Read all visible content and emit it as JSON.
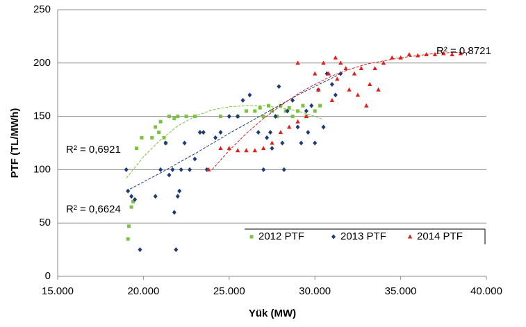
{
  "chart_data": {
    "type": "scatter",
    "xlabel": "Yük (MW)",
    "ylabel": "PTF (TL/MWh)",
    "xlim": [
      15000,
      40000
    ],
    "xticks": [
      {
        "value": 15000,
        "label": "15.000"
      },
      {
        "value": 20000,
        "label": "20.000"
      },
      {
        "value": 25000,
        "label": "25.000"
      },
      {
        "value": 30000,
        "label": "30.000"
      },
      {
        "value": 35000,
        "label": "35.000"
      },
      {
        "value": 40000,
        "label": "40.000"
      }
    ],
    "ylim": [
      0,
      250
    ],
    "yticks": [
      0,
      50,
      100,
      150,
      200,
      250
    ],
    "grid": true,
    "legend": "lower right",
    "series": [
      {
        "name": "2012 PTF",
        "color": "#7cc242",
        "marker": "square",
        "x": [
          19100,
          19150,
          19300,
          19400,
          19600,
          19900,
          20500,
          20700,
          20900,
          21000,
          21200,
          21500,
          21800,
          22000,
          22500,
          23000,
          25500,
          26000,
          26500,
          27000,
          27300,
          27500,
          27800,
          28000,
          28300,
          28700,
          29000,
          29300,
          29500,
          30000,
          30300,
          26800,
          28500,
          24500,
          21300
        ],
        "values": [
          35,
          47,
          65,
          70,
          120,
          130,
          130,
          140,
          135,
          145,
          130,
          150,
          148,
          150,
          150,
          150,
          150,
          155,
          155,
          150,
          160,
          155,
          150,
          160,
          155,
          150,
          155,
          160,
          150,
          155,
          160,
          158,
          158,
          150,
          125
        ]
      },
      {
        "name": "2013 PTF",
        "color": "#1f3a7a",
        "marker": "diamond",
        "x": [
          19000,
          19100,
          19300,
          19500,
          19800,
          20700,
          21000,
          21300,
          21500,
          21700,
          21800,
          21900,
          22000,
          22100,
          22200,
          22400,
          22700,
          23000,
          23300,
          23500,
          23700,
          24200,
          24500,
          25000,
          25500,
          25800,
          26200,
          26700,
          27000,
          27200,
          27500,
          27700,
          27900,
          28100,
          28400,
          28700,
          29000,
          29200,
          29500,
          29800,
          30000,
          30200,
          30500,
          30700,
          31000,
          31200,
          31500,
          28200,
          27400,
          29600
        ],
        "values": [
          100,
          80,
          75,
          72,
          25,
          75,
          100,
          125,
          95,
          100,
          60,
          25,
          75,
          80,
          100,
          125,
          100,
          110,
          135,
          135,
          100,
          130,
          135,
          150,
          150,
          165,
          170,
          135,
          100,
          130,
          120,
          150,
          178,
          125,
          155,
          165,
          140,
          125,
          155,
          160,
          125,
          175,
          140,
          190,
          180,
          170,
          190,
          100,
          135,
          135
        ]
      },
      {
        "name": "2014 PTF",
        "color": "#e0201b",
        "marker": "triangle",
        "x": [
          23800,
          24500,
          25000,
          25500,
          26000,
          26500,
          27000,
          27500,
          28000,
          28500,
          29000,
          29500,
          30000,
          30200,
          30500,
          30800,
          31000,
          31300,
          31500,
          31800,
          32000,
          32300,
          32500,
          32700,
          33000,
          33200,
          33500,
          33700,
          34000,
          34500,
          35000,
          35500,
          36000,
          36500,
          37000,
          37500,
          38000,
          38500,
          29000,
          31200
        ],
        "values": [
          100,
          120,
          120,
          118,
          118,
          118,
          120,
          125,
          135,
          140,
          145,
          150,
          190,
          175,
          200,
          190,
          165,
          185,
          200,
          195,
          175,
          190,
          170,
          195,
          160,
          180,
          195,
          175,
          200,
          205,
          205,
          208,
          207,
          208,
          208,
          209,
          208,
          209,
          200,
          205
        ]
      }
    ],
    "trendlines": [
      {
        "color": "#7cc242",
        "x": [
          19000,
          20000,
          21000,
          22000,
          23000,
          24000,
          25000,
          26000,
          27000,
          28000,
          29000,
          30000,
          30500
        ],
        "values": [
          92,
          112,
          128,
          141,
          150,
          156,
          159,
          160,
          160,
          158,
          155,
          150,
          147
        ]
      },
      {
        "color": "#1f3a7a",
        "x": [
          19000,
          21000,
          23000,
          25000,
          27000,
          29000,
          31000,
          31500
        ],
        "values": [
          80,
          97,
          115,
          134,
          152,
          170,
          186,
          190
        ]
      },
      {
        "color": "#e0201b",
        "x": [
          24000,
          25000,
          26000,
          27000,
          28000,
          29000,
          30000,
          31000,
          32000,
          33000,
          34000,
          35000,
          36000,
          37000,
          38000,
          39000
        ],
        "values": [
          100,
          118,
          134,
          148,
          160,
          171,
          180,
          188,
          194,
          199,
          202,
          205,
          207,
          209,
          210,
          210
        ]
      }
    ],
    "annotations": [
      "R² = 0,6921",
      "R² = 0,6624",
      "R² = 0,8721"
    ]
  }
}
